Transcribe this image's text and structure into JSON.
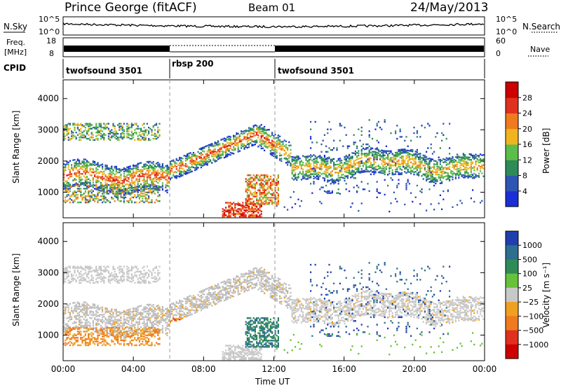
{
  "header": {
    "station": "Prince George (fitACF)",
    "beam": "Beam 01",
    "date": "24/May/2013"
  },
  "panels": {
    "nsky": {
      "label": "N.Sky",
      "right_label": "N.Search",
      "ticks_left": [
        "10^5",
        "10^0"
      ],
      "ticks_right": [
        "10^5",
        "10^0"
      ]
    },
    "freq": {
      "label_top": "Freq.",
      "label_bottom": "[MHz]",
      "ticks_left": [
        "18",
        "8"
      ],
      "ticks_right": [
        "60",
        "0"
      ],
      "right_label": "Nave"
    },
    "cpid": {
      "label": "CPID",
      "segments": [
        {
          "name": "twofsound 3501",
          "start_hour": 0,
          "end_hour": 6
        },
        {
          "name": "rbsp 200",
          "start_hour": 6,
          "end_hour": 12
        },
        {
          "name": "twofsound 3501",
          "start_hour": 12,
          "end_hour": 24
        }
      ]
    }
  },
  "chart_data": [
    {
      "type": "heatmap",
      "title": "Power",
      "ylabel": "Slant Range [km]",
      "xlabel": "",
      "x_range_hours": [
        0,
        24
      ],
      "ylim": [
        180,
        4600
      ],
      "y_ticks": [
        1000,
        2000,
        3000,
        4000
      ],
      "colorbar": {
        "label": "Power [dB]",
        "ticks": [
          "4",
          "8",
          "12",
          "16",
          "20",
          "24",
          "28"
        ],
        "colors": [
          "#1a2ed6",
          "#2d55b4",
          "#2e8b57",
          "#5bbd4a",
          "#f0b41e",
          "#f07a1e",
          "#e0301e",
          "#cc0000"
        ]
      },
      "bands": [
        {
          "desc": "main F-region echo",
          "hours": [
            0,
            24
          ],
          "range_km": [
            1300,
            2800
          ]
        },
        {
          "desc": "upper band",
          "hours": [
            0,
            5
          ],
          "range_km": [
            2700,
            3200
          ]
        },
        {
          "desc": "near-range strong echo",
          "hours": [
            9,
            11
          ],
          "range_km": [
            250,
            700
          ]
        }
      ]
    },
    {
      "type": "heatmap",
      "title": "Velocity",
      "ylabel": "Slant Range [km]",
      "xlabel": "Time UT",
      "x_range_hours": [
        0,
        24
      ],
      "x_ticks": [
        "00:00",
        "04:00",
        "08:00",
        "12:00",
        "16:00",
        "20:00",
        "00:00"
      ],
      "ylim": [
        180,
        4600
      ],
      "y_ticks": [
        1000,
        2000,
        3000,
        4000
      ],
      "colorbar": {
        "label": "Velocity [m s⁻¹]",
        "ticks": [
          "1000",
          "500",
          "100",
          "25",
          "−25",
          "−100",
          "−500",
          "−1000"
        ],
        "colors": [
          "#1f3fae",
          "#2e6e8e",
          "#2e8b57",
          "#66c23a",
          "#c8c8c8",
          "#f0a020",
          "#f07a1e",
          "#e0301e",
          "#cc0000"
        ]
      },
      "ground_scatter_color": "#bebebe"
    }
  ]
}
